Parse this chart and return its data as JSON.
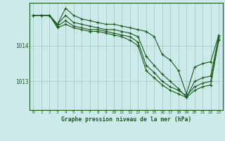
{
  "title": "Graphe pression niveau de la mer (hPa)",
  "bg_color": "#cceaea",
  "grid_color": "#aacfcf",
  "line_color": "#1a5c1a",
  "xlim": [
    -0.5,
    23.5
  ],
  "ylim": [
    1012.2,
    1015.2
  ],
  "yticks": [
    1013,
    1014
  ],
  "xticks": [
    0,
    1,
    2,
    3,
    4,
    5,
    6,
    7,
    8,
    9,
    10,
    11,
    12,
    13,
    14,
    15,
    16,
    17,
    18,
    19,
    20,
    21,
    22,
    23
  ],
  "series": [
    [
      1014.85,
      1014.85,
      1014.85,
      1014.6,
      1015.05,
      1014.85,
      1014.75,
      1014.7,
      1014.65,
      1014.6,
      1014.6,
      1014.55,
      1014.5,
      1014.45,
      1014.4,
      1014.25,
      1013.75,
      1013.6,
      1013.3,
      1012.65,
      1013.4,
      1013.5,
      1013.55,
      1014.3
    ],
    [
      1014.85,
      1014.85,
      1014.85,
      1014.6,
      1014.85,
      1014.65,
      1014.6,
      1014.55,
      1014.5,
      1014.45,
      1014.45,
      1014.4,
      1014.35,
      1014.25,
      1013.7,
      1013.45,
      1013.2,
      1013.0,
      1012.8,
      1012.55,
      1013.0,
      1013.1,
      1013.15,
      1014.25
    ],
    [
      1014.85,
      1014.85,
      1014.85,
      1014.55,
      1014.7,
      1014.55,
      1014.5,
      1014.45,
      1014.45,
      1014.4,
      1014.35,
      1014.3,
      1014.25,
      1014.1,
      1013.45,
      1013.25,
      1013.0,
      1012.85,
      1012.75,
      1012.6,
      1012.85,
      1012.95,
      1013.0,
      1014.2
    ],
    [
      1014.85,
      1014.85,
      1014.85,
      1014.5,
      1014.6,
      1014.5,
      1014.45,
      1014.4,
      1014.4,
      1014.35,
      1014.3,
      1014.25,
      1014.15,
      1014.0,
      1013.3,
      1013.1,
      1012.9,
      1012.75,
      1012.65,
      1012.55,
      1012.75,
      1012.85,
      1012.9,
      1014.15
    ]
  ]
}
